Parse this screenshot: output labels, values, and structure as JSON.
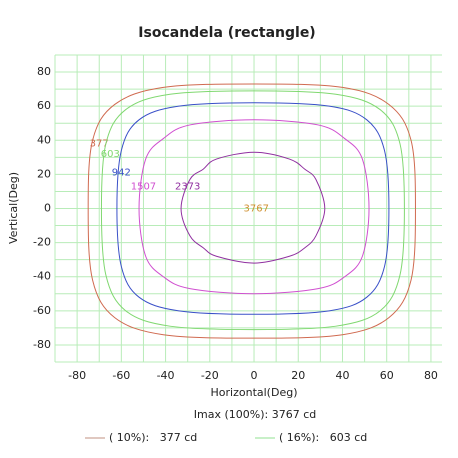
{
  "chart_data": {
    "type": "contour",
    "title": "Isocandela (rectangle)",
    "x_label": "Horizontal(Deg)",
    "y_label": "Vertical(Deg)",
    "xlim": [
      -90,
      85
    ],
    "ylim": [
      -90,
      90
    ],
    "xticks": [
      -80,
      -60,
      -40,
      -20,
      0,
      20,
      40,
      60,
      80
    ],
    "yticks": [
      -80,
      -60,
      -40,
      -20,
      0,
      20,
      40,
      60,
      80
    ],
    "xgrid": [
      -90,
      -80,
      -70,
      -60,
      -50,
      -40,
      -30,
      -20,
      -10,
      0,
      10,
      20,
      30,
      40,
      50,
      60,
      70,
      80
    ],
    "ygrid": [
      -90,
      -80,
      -70,
      -60,
      -50,
      -40,
      -30,
      -20,
      -10,
      0,
      10,
      20,
      30,
      40,
      50,
      60,
      70,
      80,
      90
    ],
    "grid_color": "#b8ecb8",
    "series": [
      {
        "name": "377",
        "color": "#d06a50",
        "x": [
          73,
          71,
          61,
          40,
          0,
          -41,
          -63,
          -73,
          -75,
          -73,
          -63,
          -41,
          0,
          40,
          61,
          71
        ],
        "y": [
          0,
          40,
          61,
          71,
          73,
          71,
          61,
          40,
          0,
          -42,
          -64,
          -74,
          -76,
          -74,
          -64,
          -42
        ]
      },
      {
        "name": "603",
        "color": "#80d870",
        "x": [
          68,
          66,
          57,
          37,
          0,
          -38,
          -58,
          -67,
          -69,
          -67,
          -58,
          -38,
          0,
          37,
          57,
          66
        ],
        "y": [
          0,
          38,
          58,
          67,
          69,
          67,
          58,
          38,
          0,
          -39,
          -60,
          -69,
          -71,
          -69,
          -60,
          -39
        ]
      },
      {
        "name": "942",
        "color": "#3a50c8",
        "x": [
          61,
          59,
          51,
          34,
          0,
          -34,
          -52,
          -60,
          -62,
          -60,
          -52,
          -34,
          0,
          34,
          51,
          59
        ],
        "y": [
          0,
          34,
          52,
          60,
          62,
          60,
          52,
          34,
          0,
          -34,
          -52,
          -60,
          -62,
          -60,
          -52,
          -34
        ]
      },
      {
        "name": "1507",
        "color": "#d050d0",
        "x": [
          52,
          49,
          41,
          29,
          0,
          -29,
          -41,
          -49,
          -52,
          -49,
          -41,
          -29,
          0,
          29,
          41,
          49
        ],
        "y": [
          0,
          29,
          41,
          49,
          52,
          49,
          41,
          29,
          0,
          -28,
          -40,
          -47,
          -50,
          -47,
          -40,
          -28
        ]
      },
      {
        "name": "2373",
        "color": "#9030a0",
        "x": [
          32,
          28,
          23,
          16,
          0,
          -17,
          -23,
          -29,
          -33,
          -29,
          -23,
          -17,
          0,
          16,
          23,
          28
        ],
        "y": [
          0,
          17,
          23,
          29,
          33,
          29,
          23,
          17,
          0,
          -16,
          -23,
          -28,
          -32,
          -28,
          -23,
          -16
        ]
      }
    ],
    "center_label": "3767",
    "center_color": "#d09030",
    "imax": "Imax (100%): 3767 cd",
    "legend": [
      {
        "text": "( 10%):   377 cd",
        "color": "#c09080"
      },
      {
        "text": "( 16%):   603 cd",
        "color": "#90e090"
      }
    ]
  }
}
